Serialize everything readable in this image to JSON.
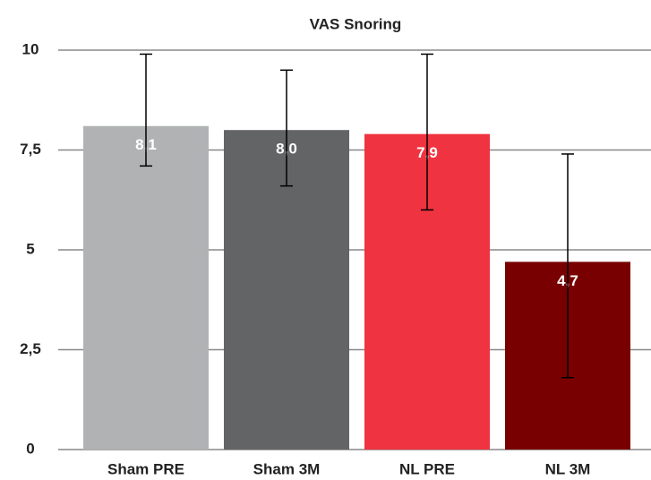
{
  "chart_data": {
    "type": "bar",
    "title": "VAS Snoring",
    "categories": [
      "Sham PRE",
      "Sham 3M",
      "NL PRE",
      "NL 3M"
    ],
    "values": [
      8.1,
      8.0,
      7.9,
      4.7
    ],
    "value_labels": [
      "8,1",
      "8,0",
      "7,9",
      "4,7"
    ],
    "colors": [
      "#b1b2b4",
      "#636466",
      "#ef3340",
      "#780000"
    ],
    "errors": [
      {
        "low": 7.1,
        "high": 9.9
      },
      {
        "low": 6.6,
        "high": 9.5
      },
      {
        "low": 6.0,
        "high": 9.9
      },
      {
        "low": 1.8,
        "high": 7.4
      }
    ],
    "ylim": [
      0,
      10
    ],
    "yticks": [
      0,
      {
        "value": 2.5,
        "label": "2,5"
      },
      5,
      {
        "value": 7.5,
        "label": "7,5"
      },
      10
    ],
    "grid": true
  }
}
